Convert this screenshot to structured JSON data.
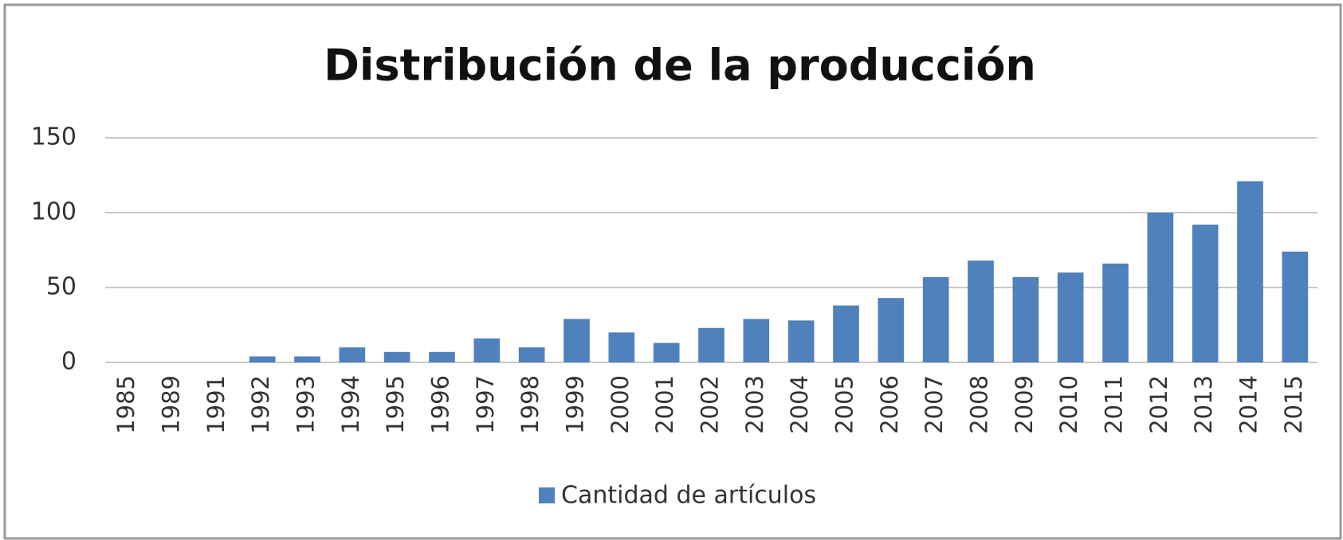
{
  "chart_data": {
    "type": "bar",
    "title": "Distribución de la producción",
    "categories": [
      "1985",
      "1989",
      "1991",
      "1992",
      "1993",
      "1994",
      "1995",
      "1996",
      "1997",
      "1998",
      "1999",
      "2000",
      "2001",
      "2002",
      "2003",
      "2004",
      "2005",
      "2006",
      "2007",
      "2008",
      "2009",
      "2010",
      "2011",
      "2012",
      "2013",
      "2014",
      "2015"
    ],
    "series": [
      {
        "name": "Cantidad de artículos",
        "color": "#4f81bd",
        "values": [
          0,
          0,
          0,
          4,
          4,
          10,
          7,
          7,
          16,
          10,
          29,
          20,
          13,
          23,
          29,
          28,
          38,
          43,
          57,
          68,
          57,
          60,
          66,
          100,
          92,
          121,
          74
        ]
      }
    ],
    "ylim": [
      0,
      150
    ],
    "yticks": [
      0,
      50,
      100,
      150
    ],
    "grid": true,
    "legend": "bottom"
  }
}
